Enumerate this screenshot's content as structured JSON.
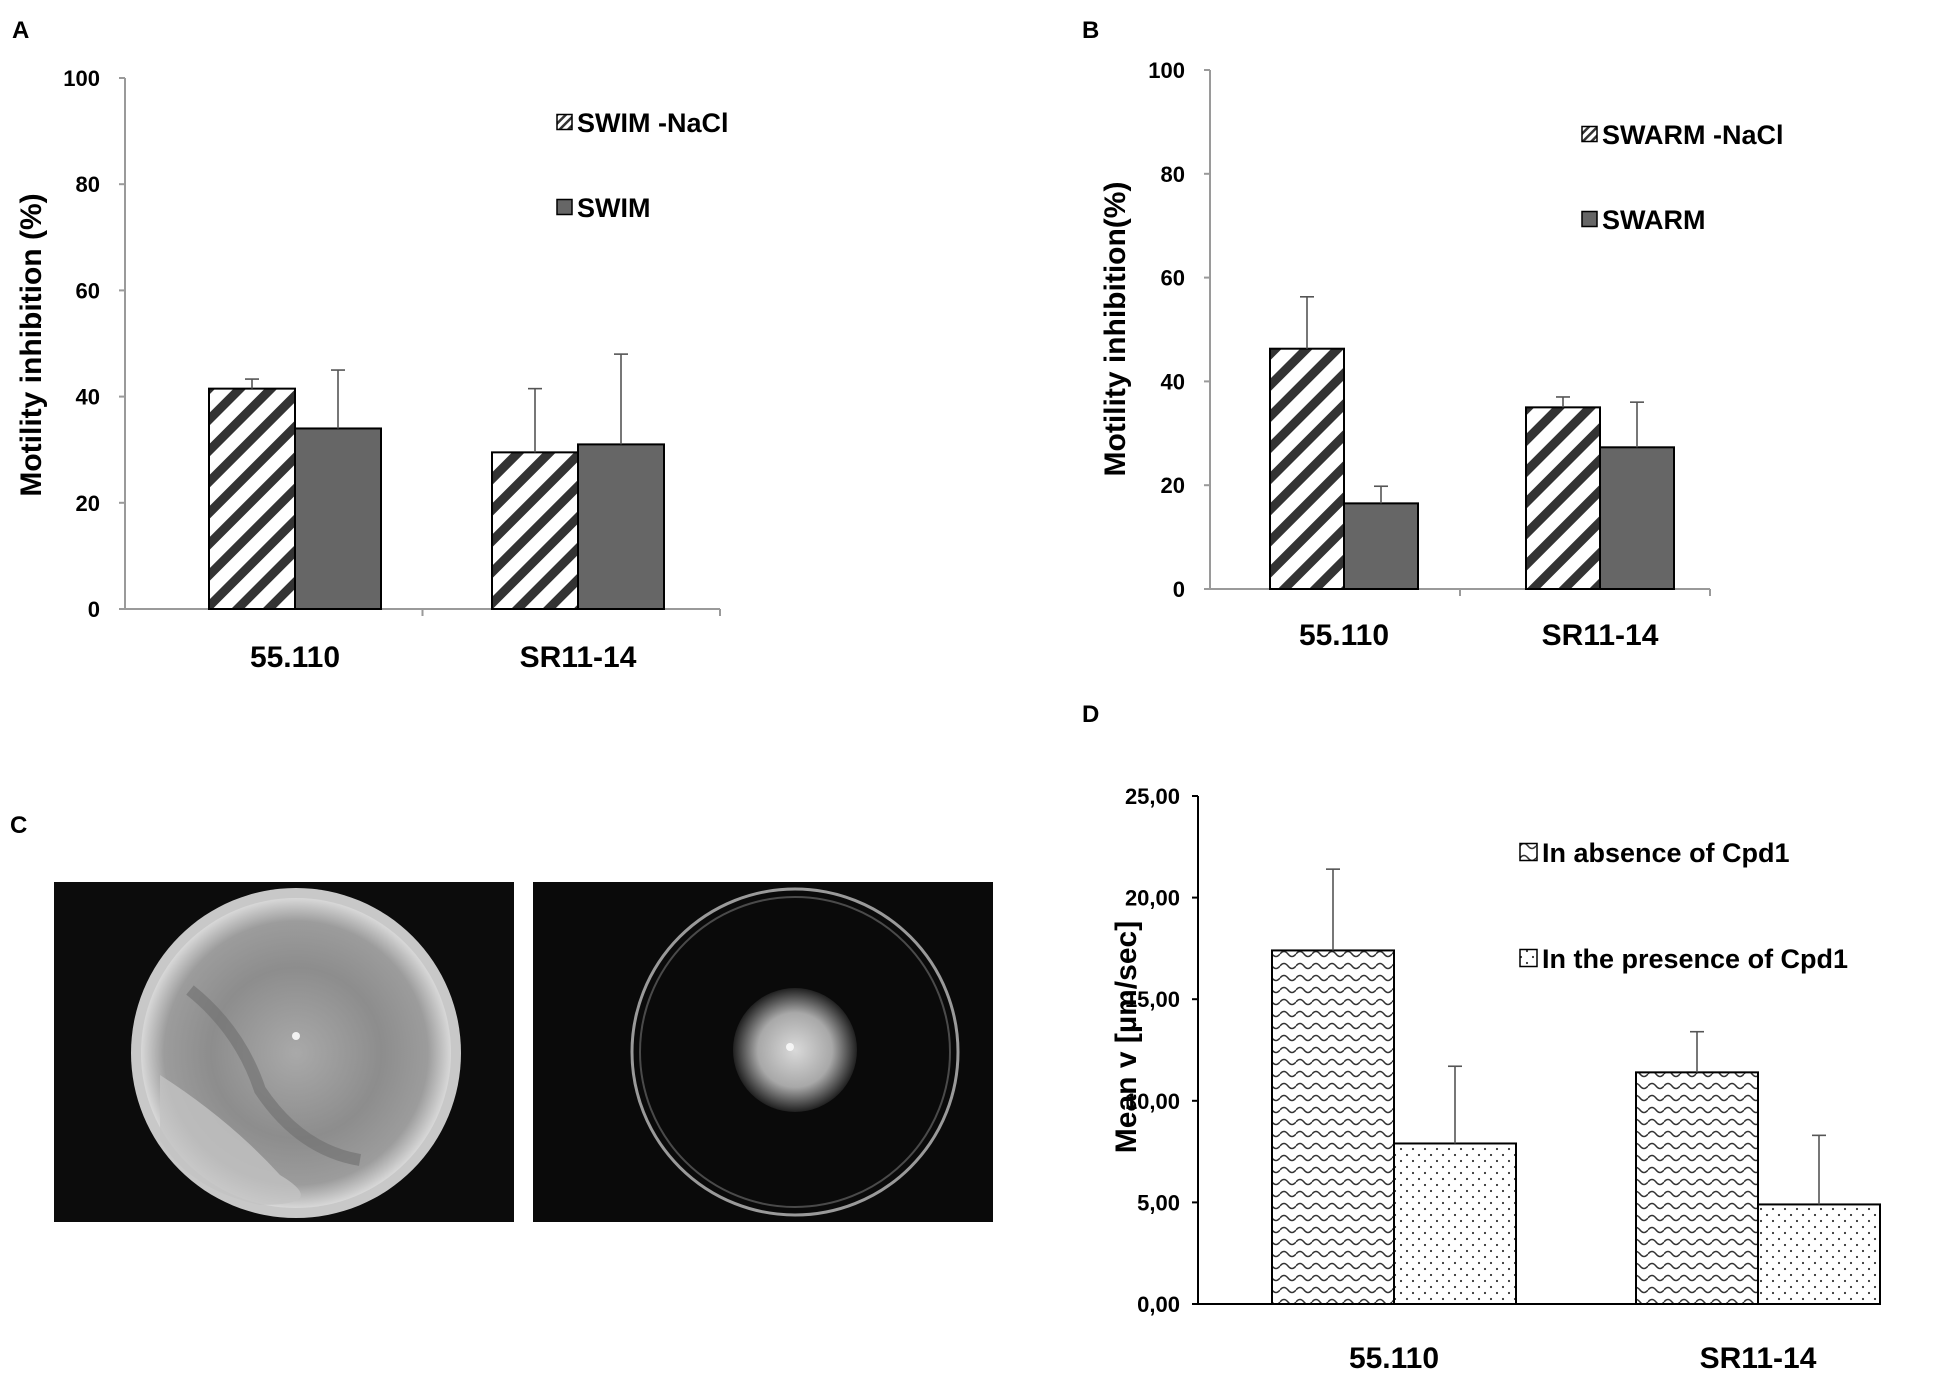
{
  "panels": {
    "a": "A",
    "b": "B",
    "c": "C",
    "d": "D"
  },
  "chart_data": [
    {
      "id": "A",
      "type": "bar",
      "categories": [
        "55.110",
        "SR11-14"
      ],
      "ylabel": "Motility inhibition (%)",
      "ylim": [
        0,
        100
      ],
      "yticks": [
        "0",
        "20",
        "40",
        "60",
        "80",
        "100"
      ],
      "series": [
        {
          "name": "SWIM -NaCl",
          "pattern": "diagonal-hatch",
          "values": [
            41.5,
            29.5
          ],
          "errors": [
            1.8,
            12
          ]
        },
        {
          "name": "SWIM",
          "pattern": "solid-gray",
          "color": "#666666",
          "values": [
            34,
            31
          ],
          "errors": [
            11,
            17
          ]
        }
      ],
      "legend_position": "top-right"
    },
    {
      "id": "B",
      "type": "bar",
      "categories": [
        "55.110",
        "SR11-14"
      ],
      "ylabel": "Motility inhibition(%)",
      "ylim": [
        0,
        100
      ],
      "yticks": [
        "0",
        "20",
        "40",
        "60",
        "80",
        "100"
      ],
      "series": [
        {
          "name": "SWARM -NaCl",
          "pattern": "diagonal-hatch",
          "values": [
            46.3,
            35
          ],
          "errors": [
            10,
            2
          ]
        },
        {
          "name": "SWARM",
          "pattern": "solid-gray",
          "color": "#666666",
          "values": [
            16.5,
            27.3
          ],
          "errors": [
            3.3,
            8.7
          ]
        }
      ],
      "legend_position": "top-right"
    },
    {
      "id": "D",
      "type": "bar",
      "categories": [
        "55.110",
        "SR11-14"
      ],
      "ylabel": "Mean v [µm/sec]",
      "ylim": [
        0,
        25
      ],
      "yticks": [
        "0,00",
        "5,00",
        "10,00",
        "15,00",
        "20,00",
        "25,00"
      ],
      "series": [
        {
          "name": "In absence of Cpd1",
          "pattern": "wave",
          "values": [
            17.4,
            11.4
          ],
          "errors": [
            4.0,
            2.0
          ]
        },
        {
          "name": "In the presence of Cpd1",
          "pattern": "dots",
          "values": [
            7.9,
            4.9
          ],
          "errors": [
            3.8,
            3.4
          ]
        }
      ],
      "legend_position": "top-right"
    }
  ],
  "photos": {
    "left": "petri-dish-swarm-spread",
    "right": "petri-dish-swarm-inhibited"
  }
}
